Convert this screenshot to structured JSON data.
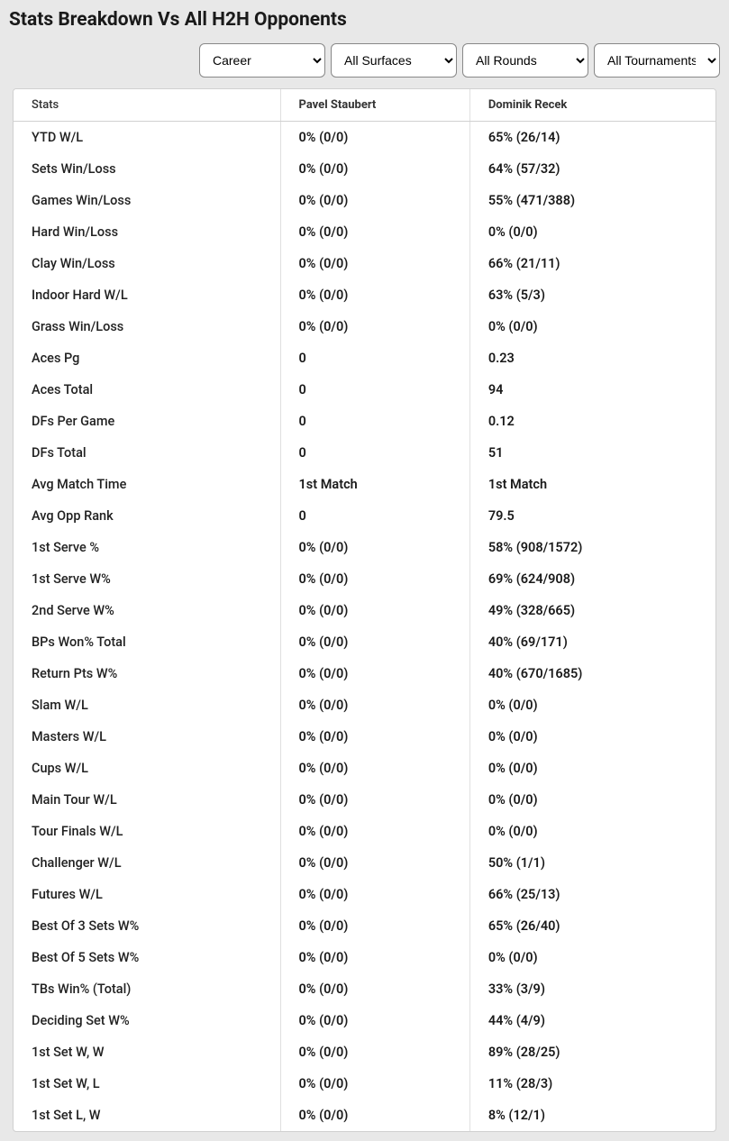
{
  "title": "Stats Breakdown Vs All H2H Opponents",
  "filters": {
    "period": "Career",
    "surface": "All Surfaces",
    "round": "All Rounds",
    "tournament": "All Tournaments"
  },
  "table": {
    "columns": [
      "Stats",
      "Pavel Staubert",
      "Dominik Recek"
    ],
    "rows": [
      [
        "YTD W/L",
        "0% (0/0)",
        "65% (26/14)"
      ],
      [
        "Sets Win/Loss",
        "0% (0/0)",
        "64% (57/32)"
      ],
      [
        "Games Win/Loss",
        "0% (0/0)",
        "55% (471/388)"
      ],
      [
        "Hard Win/Loss",
        "0% (0/0)",
        "0% (0/0)"
      ],
      [
        "Clay Win/Loss",
        "0% (0/0)",
        "66% (21/11)"
      ],
      [
        "Indoor Hard W/L",
        "0% (0/0)",
        "63% (5/3)"
      ],
      [
        "Grass Win/Loss",
        "0% (0/0)",
        "0% (0/0)"
      ],
      [
        "Aces Pg",
        "0",
        "0.23"
      ],
      [
        "Aces Total",
        "0",
        "94"
      ],
      [
        "DFs Per Game",
        "0",
        "0.12"
      ],
      [
        "DFs Total",
        "0",
        "51"
      ],
      [
        "Avg Match Time",
        "1st Match",
        "1st Match"
      ],
      [
        "Avg Opp Rank",
        "0",
        "79.5"
      ],
      [
        "1st Serve %",
        "0% (0/0)",
        "58% (908/1572)"
      ],
      [
        "1st Serve W%",
        "0% (0/0)",
        "69% (624/908)"
      ],
      [
        "2nd Serve W%",
        "0% (0/0)",
        "49% (328/665)"
      ],
      [
        "BPs Won% Total",
        "0% (0/0)",
        "40% (69/171)"
      ],
      [
        "Return Pts W%",
        "0% (0/0)",
        "40% (670/1685)"
      ],
      [
        "Slam W/L",
        "0% (0/0)",
        "0% (0/0)"
      ],
      [
        "Masters W/L",
        "0% (0/0)",
        "0% (0/0)"
      ],
      [
        "Cups W/L",
        "0% (0/0)",
        "0% (0/0)"
      ],
      [
        "Main Tour W/L",
        "0% (0/0)",
        "0% (0/0)"
      ],
      [
        "Tour Finals W/L",
        "0% (0/0)",
        "0% (0/0)"
      ],
      [
        "Challenger W/L",
        "0% (0/0)",
        "50% (1/1)"
      ],
      [
        "Futures W/L",
        "0% (0/0)",
        "66% (25/13)"
      ],
      [
        "Best Of 3 Sets W%",
        "0% (0/0)",
        "65% (26/40)"
      ],
      [
        "Best Of 5 Sets W%",
        "0% (0/0)",
        "0% (0/0)"
      ],
      [
        "TBs Win% (Total)",
        "0% (0/0)",
        "33% (3/9)"
      ],
      [
        "Deciding Set W%",
        "0% (0/0)",
        "44% (4/9)"
      ],
      [
        "1st Set W, W",
        "0% (0/0)",
        "89% (28/25)"
      ],
      [
        "1st Set W, L",
        "0% (0/0)",
        "11% (28/3)"
      ],
      [
        "1st Set L, W",
        "0% (0/0)",
        "8% (12/1)"
      ]
    ]
  }
}
